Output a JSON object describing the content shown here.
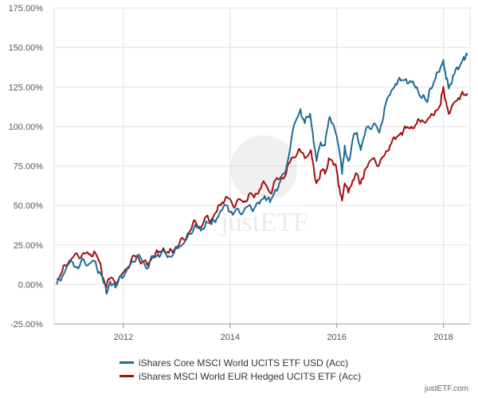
{
  "chart_data": {
    "type": "line",
    "title": "",
    "xlabel": "",
    "ylabel": "",
    "x_range": [
      2010.7,
      2018.5
    ],
    "ylim": [
      -25,
      175
    ],
    "y_ticks": [
      -25,
      0,
      25,
      50,
      75,
      100,
      125,
      150,
      175
    ],
    "y_tick_labels": [
      "-25.00%",
      "0.00%",
      "25.00%",
      "50.00%",
      "75.00%",
      "100.00%",
      "125.00%",
      "150.00%",
      "175.00%"
    ],
    "x_ticks": [
      2012,
      2014,
      2016,
      2018
    ],
    "x_tick_labels": [
      "2012",
      "2014",
      "2016",
      "2018"
    ],
    "grid": true,
    "legend_position": "bottom",
    "series": [
      {
        "name": "iShares Core MSCI World UCITS ETF USD (Acc)",
        "color": "#1f6a94",
        "points": [
          [
            2010.75,
            0
          ],
          [
            2010.85,
            5
          ],
          [
            2010.95,
            12
          ],
          [
            2011.05,
            14
          ],
          [
            2011.15,
            10
          ],
          [
            2011.25,
            16
          ],
          [
            2011.35,
            13
          ],
          [
            2011.45,
            15
          ],
          [
            2011.55,
            8
          ],
          [
            2011.62,
            2
          ],
          [
            2011.68,
            -6
          ],
          [
            2011.75,
            2
          ],
          [
            2011.85,
            -2
          ],
          [
            2011.95,
            6
          ],
          [
            2012.05,
            8
          ],
          [
            2012.15,
            14
          ],
          [
            2012.25,
            18
          ],
          [
            2012.35,
            15
          ],
          [
            2012.45,
            10
          ],
          [
            2012.55,
            17
          ],
          [
            2012.65,
            19
          ],
          [
            2012.75,
            21
          ],
          [
            2012.85,
            18
          ],
          [
            2012.95,
            20
          ],
          [
            2013.05,
            24
          ],
          [
            2013.15,
            27
          ],
          [
            2013.25,
            32
          ],
          [
            2013.35,
            38
          ],
          [
            2013.45,
            34
          ],
          [
            2013.55,
            40
          ],
          [
            2013.65,
            38
          ],
          [
            2013.75,
            42
          ],
          [
            2013.85,
            47
          ],
          [
            2013.95,
            50
          ],
          [
            2014.05,
            44
          ],
          [
            2014.15,
            48
          ],
          [
            2014.25,
            46
          ],
          [
            2014.35,
            50
          ],
          [
            2014.45,
            48
          ],
          [
            2014.55,
            51
          ],
          [
            2014.65,
            56
          ],
          [
            2014.75,
            52
          ],
          [
            2014.85,
            60
          ],
          [
            2014.95,
            66
          ],
          [
            2015.05,
            73
          ],
          [
            2015.15,
            92
          ],
          [
            2015.25,
            105
          ],
          [
            2015.32,
            111
          ],
          [
            2015.4,
            102
          ],
          [
            2015.5,
            108
          ],
          [
            2015.55,
            96
          ],
          [
            2015.62,
            78
          ],
          [
            2015.7,
            90
          ],
          [
            2015.78,
            88
          ],
          [
            2015.85,
            104
          ],
          [
            2015.92,
            102
          ],
          [
            2016.0,
            94
          ],
          [
            2016.05,
            84
          ],
          [
            2016.1,
            70
          ],
          [
            2016.15,
            88
          ],
          [
            2016.22,
            78
          ],
          [
            2016.3,
            92
          ],
          [
            2016.38,
            96
          ],
          [
            2016.45,
            85
          ],
          [
            2016.52,
            94
          ],
          [
            2016.6,
            100
          ],
          [
            2016.7,
            102
          ],
          [
            2016.8,
            96
          ],
          [
            2016.9,
            112
          ],
          [
            2017.0,
            120
          ],
          [
            2017.1,
            127
          ],
          [
            2017.2,
            129
          ],
          [
            2017.3,
            130
          ],
          [
            2017.4,
            128
          ],
          [
            2017.5,
            125
          ],
          [
            2017.6,
            118
          ],
          [
            2017.68,
            116
          ],
          [
            2017.75,
            124
          ],
          [
            2017.85,
            130
          ],
          [
            2017.95,
            138
          ],
          [
            2018.0,
            142
          ],
          [
            2018.05,
            130
          ],
          [
            2018.1,
            124
          ],
          [
            2018.18,
            132
          ],
          [
            2018.28,
            136
          ],
          [
            2018.38,
            144
          ],
          [
            2018.45,
            145
          ]
        ]
      },
      {
        "name": "iShares MSCI World EUR Hedged UCITS ETF (Acc)",
        "color": "#a30d0d",
        "points": [
          [
            2010.75,
            3
          ],
          [
            2010.85,
            8
          ],
          [
            2010.95,
            13
          ],
          [
            2011.05,
            17
          ],
          [
            2011.15,
            18
          ],
          [
            2011.25,
            20
          ],
          [
            2011.35,
            19
          ],
          [
            2011.45,
            21
          ],
          [
            2011.55,
            14
          ],
          [
            2011.62,
            4
          ],
          [
            2011.68,
            -2
          ],
          [
            2011.75,
            4
          ],
          [
            2011.85,
            1
          ],
          [
            2011.95,
            5
          ],
          [
            2012.05,
            10
          ],
          [
            2012.15,
            16
          ],
          [
            2012.25,
            18
          ],
          [
            2012.35,
            14
          ],
          [
            2012.45,
            12
          ],
          [
            2012.55,
            18
          ],
          [
            2012.65,
            20
          ],
          [
            2012.75,
            23
          ],
          [
            2012.85,
            20
          ],
          [
            2012.95,
            22
          ],
          [
            2013.05,
            26
          ],
          [
            2013.15,
            28
          ],
          [
            2013.25,
            34
          ],
          [
            2013.35,
            40
          ],
          [
            2013.45,
            36
          ],
          [
            2013.55,
            43
          ],
          [
            2013.65,
            41
          ],
          [
            2013.75,
            46
          ],
          [
            2013.85,
            52
          ],
          [
            2013.95,
            55
          ],
          [
            2014.05,
            50
          ],
          [
            2014.15,
            54
          ],
          [
            2014.25,
            52
          ],
          [
            2014.35,
            57
          ],
          [
            2014.45,
            55
          ],
          [
            2014.55,
            60
          ],
          [
            2014.65,
            64
          ],
          [
            2014.75,
            58
          ],
          [
            2014.85,
            66
          ],
          [
            2014.95,
            68
          ],
          [
            2015.05,
            70
          ],
          [
            2015.15,
            80
          ],
          [
            2015.25,
            82
          ],
          [
            2015.32,
            84
          ],
          [
            2015.4,
            80
          ],
          [
            2015.5,
            84
          ],
          [
            2015.55,
            78
          ],
          [
            2015.62,
            64
          ],
          [
            2015.7,
            72
          ],
          [
            2015.78,
            70
          ],
          [
            2015.85,
            80
          ],
          [
            2015.92,
            78
          ],
          [
            2016.0,
            72
          ],
          [
            2016.05,
            62
          ],
          [
            2016.1,
            53
          ],
          [
            2016.15,
            64
          ],
          [
            2016.22,
            58
          ],
          [
            2016.3,
            66
          ],
          [
            2016.38,
            70
          ],
          [
            2016.45,
            64
          ],
          [
            2016.52,
            72
          ],
          [
            2016.6,
            77
          ],
          [
            2016.7,
            80
          ],
          [
            2016.8,
            76
          ],
          [
            2016.9,
            82
          ],
          [
            2017.0,
            88
          ],
          [
            2017.1,
            92
          ],
          [
            2017.2,
            96
          ],
          [
            2017.3,
            99
          ],
          [
            2017.4,
            100
          ],
          [
            2017.5,
            102
          ],
          [
            2017.6,
            104
          ],
          [
            2017.68,
            103
          ],
          [
            2017.75,
            106
          ],
          [
            2017.85,
            110
          ],
          [
            2017.95,
            114
          ],
          [
            2018.0,
            125
          ],
          [
            2018.05,
            116
          ],
          [
            2018.1,
            108
          ],
          [
            2018.18,
            114
          ],
          [
            2018.28,
            118
          ],
          [
            2018.38,
            120
          ],
          [
            2018.45,
            121
          ]
        ]
      }
    ]
  },
  "watermark": {
    "icon": "justetf-logo-icon",
    "text": "justETF"
  },
  "credit": "justETF.com"
}
